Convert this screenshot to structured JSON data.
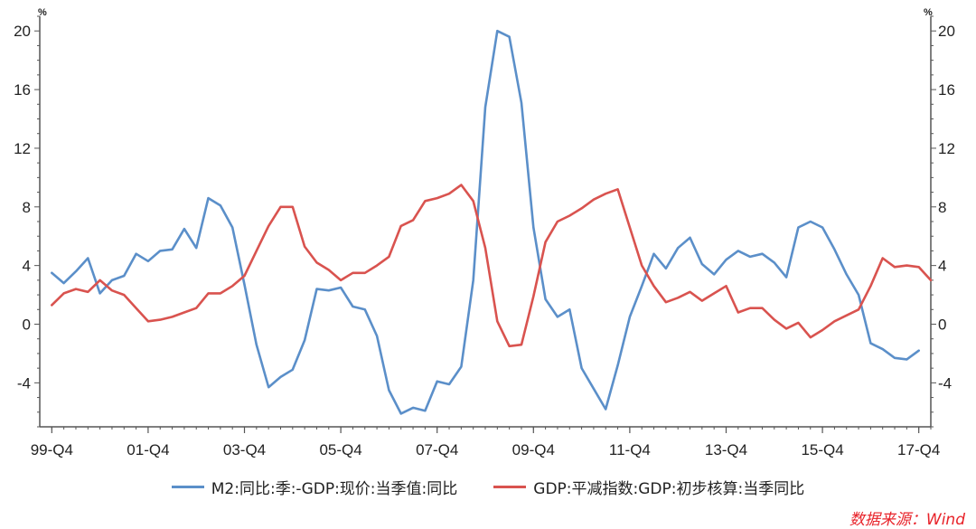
{
  "chart_data": {
    "type": "line",
    "unit_left": "%",
    "unit_right": "%",
    "ylim": [
      -7,
      21
    ],
    "yticks": [
      -4,
      0,
      4,
      8,
      12,
      16,
      20
    ],
    "ytick_labels": [
      "-4",
      "0",
      "4",
      "8",
      "12",
      "16",
      "20"
    ],
    "xticks": [
      {
        "index": 0,
        "label": "99-Q4"
      },
      {
        "index": 8,
        "label": "01-Q4"
      },
      {
        "index": 16,
        "label": "03-Q4"
      },
      {
        "index": 24,
        "label": "05-Q4"
      },
      {
        "index": 32,
        "label": "07-Q4"
      },
      {
        "index": 40,
        "label": "09-Q4"
      },
      {
        "index": 48,
        "label": "11-Q4"
      },
      {
        "index": 56,
        "label": "13-Q4"
      },
      {
        "index": 64,
        "label": "15-Q4"
      },
      {
        "index": 72,
        "label": "17-Q4"
      }
    ],
    "x_start": -1,
    "x_end": 73,
    "series": [
      {
        "name": "M2:同比:季:-GDP:现价:当季值:同比",
        "color": "#5b8fc9",
        "x_start": 0,
        "values": [
          3.5,
          2.8,
          3.6,
          4.5,
          2.1,
          3.0,
          3.3,
          4.8,
          4.3,
          5.0,
          5.1,
          6.5,
          5.2,
          8.6,
          8.1,
          6.6,
          2.7,
          -1.4,
          -4.3,
          -3.6,
          -3.1,
          -1.1,
          2.4,
          2.3,
          2.5,
          1.2,
          1.0,
          -0.8,
          -4.5,
          -6.1,
          -5.7,
          -5.9,
          -3.9,
          -4.1,
          -2.9,
          3.0,
          14.8,
          20.0,
          19.6,
          15.1,
          6.6,
          1.7,
          0.5,
          1.0,
          -3.0,
          -4.4,
          -5.8,
          -2.8,
          0.5,
          2.6,
          4.8,
          3.8,
          5.2,
          5.9,
          4.1,
          3.4,
          4.4,
          5.0,
          4.6,
          4.8,
          4.2,
          3.2,
          6.6,
          7.0,
          6.6,
          5.1,
          3.4,
          2.0,
          -1.3,
          -1.7,
          -2.3,
          -2.4,
          -1.8
        ]
      },
      {
        "name": "GDP:平减指数:GDP:初步核算:当季同比",
        "color": "#d9534f",
        "x_start": 0,
        "values": [
          1.3,
          2.1,
          2.4,
          2.2,
          3.0,
          2.3,
          2.0,
          1.1,
          0.2,
          0.3,
          0.5,
          0.8,
          1.1,
          2.1,
          2.1,
          2.6,
          3.3,
          5.0,
          6.7,
          8.0,
          8.0,
          5.3,
          4.2,
          3.7,
          3.0,
          3.5,
          3.5,
          4.0,
          4.6,
          6.7,
          7.1,
          8.4,
          8.6,
          8.9,
          9.5,
          8.4,
          5.2,
          0.2,
          -1.5,
          -1.4,
          1.9,
          5.6,
          7.0,
          7.4,
          7.9,
          8.5,
          8.9,
          9.2,
          6.6,
          4.0,
          2.6,
          1.5,
          1.8,
          2.2,
          1.6,
          2.1,
          2.6,
          0.8,
          1.1,
          1.1,
          0.3,
          -0.3,
          0.1,
          -0.9,
          -0.4,
          0.2,
          0.6,
          1.0,
          2.6,
          4.5,
          3.9,
          4.0,
          3.9,
          3.0
        ]
      }
    ]
  },
  "legend": {
    "m2_label": "M2:同比:季:-GDP:现价:当季值:同比",
    "gdp_label": "GDP:平减指数:GDP:初步核算:当季同比"
  },
  "source": "数据来源：Wind"
}
